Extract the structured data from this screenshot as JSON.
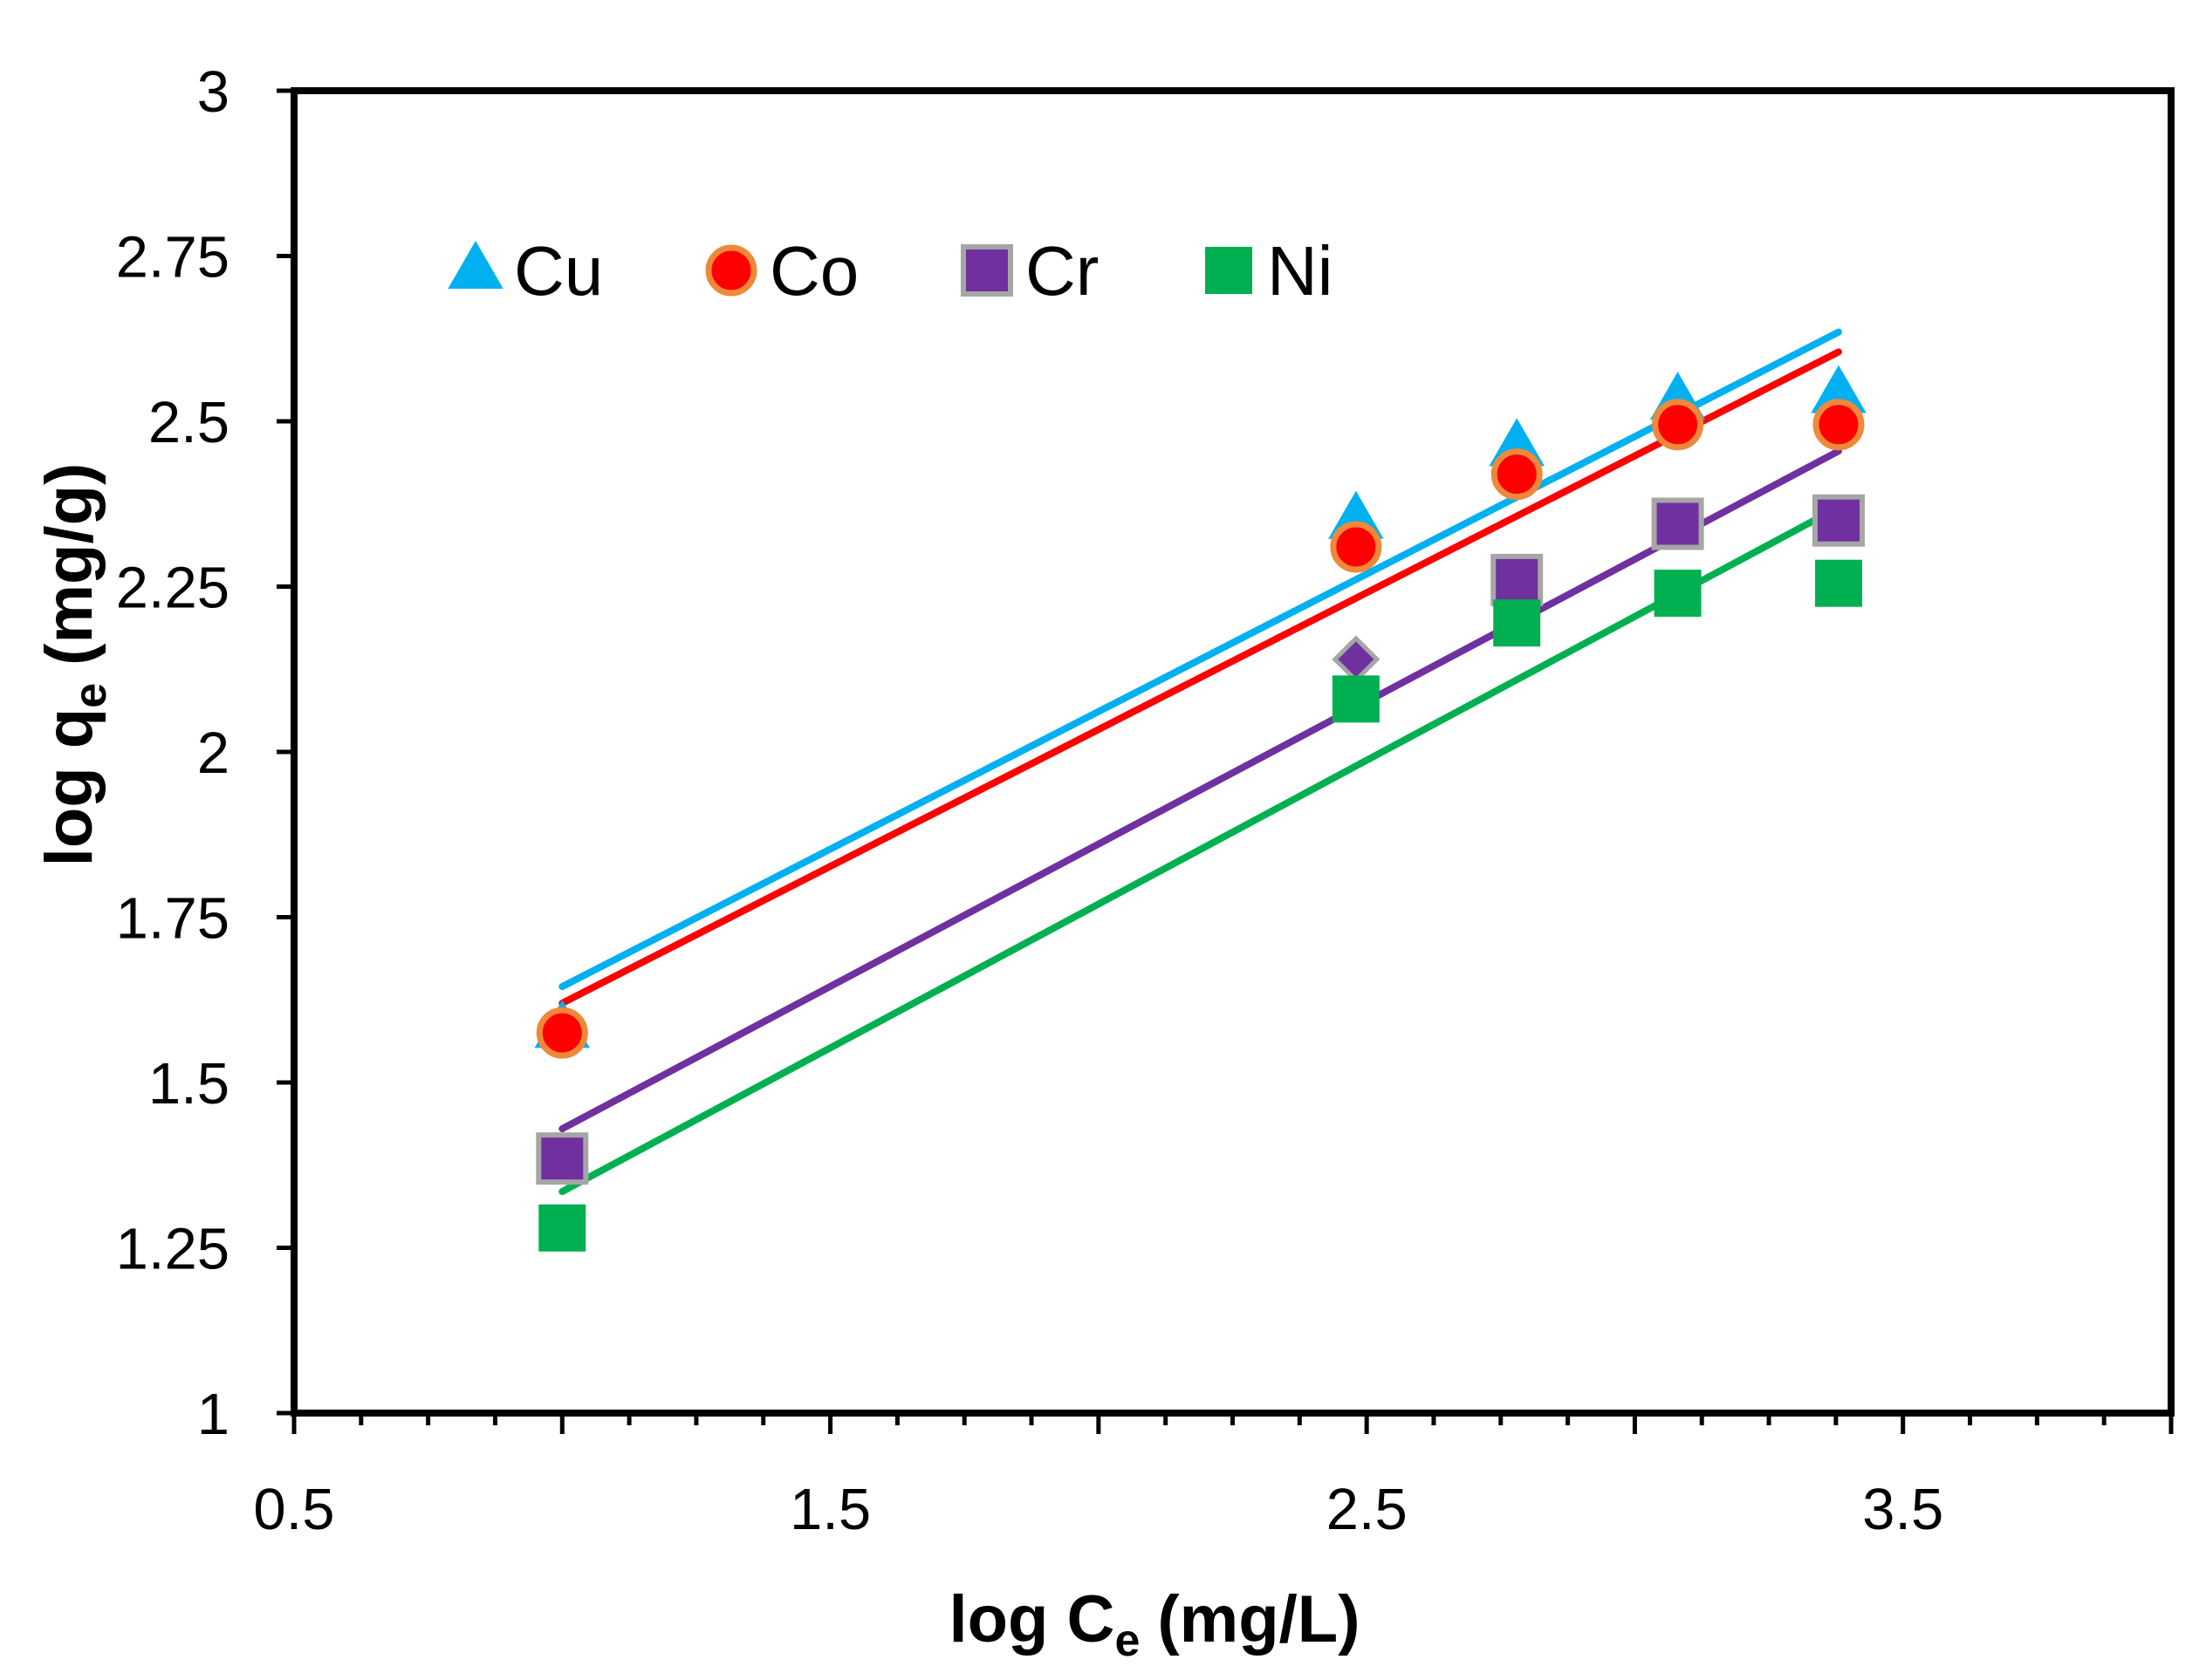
{
  "chart_data": {
    "type": "scatter",
    "xlabel_main": "log C",
    "xlabel_sub": "e",
    "xlabel_unit": "(mg/L)",
    "ylabel_main": "log q",
    "ylabel_sub": "e",
    "ylabel_unit": "(mg/g)",
    "xlim": [
      0.5,
      4.0
    ],
    "ylim": [
      1.0,
      3.0
    ],
    "x_ticks": [
      0.5,
      1.5,
      2.5,
      3.5
    ],
    "x_tick_labels": [
      "0.5",
      "1.5",
      "2.5",
      "3.5"
    ],
    "y_ticks": [
      1,
      1.25,
      1.5,
      1.75,
      2,
      2.25,
      2.5,
      2.75,
      3
    ],
    "y_tick_labels": [
      "1",
      "1.25",
      "1.5",
      "1.75",
      "2",
      "2.25",
      "2.5",
      "2.75",
      "3"
    ],
    "grid": false,
    "legend_position": "top-left",
    "series": [
      {
        "name": "Cu",
        "marker": "triangle",
        "color": "#00B0F0",
        "stroke": "#00B0F0",
        "points": [
          [
            1.0,
            1.58
          ],
          [
            2.48,
            2.35
          ],
          [
            2.78,
            2.46
          ],
          [
            3.08,
            2.53
          ],
          [
            3.38,
            2.54
          ]
        ],
        "fit": [
          [
            1.0,
            1.645
          ],
          [
            3.38,
            2.635
          ]
        ]
      },
      {
        "name": "Co",
        "marker": "circle",
        "color": "#FF0000",
        "stroke": "#F0883A",
        "points": [
          [
            1.0,
            1.575
          ],
          [
            2.48,
            2.31
          ],
          [
            2.78,
            2.42
          ],
          [
            3.08,
            2.495
          ],
          [
            3.38,
            2.495
          ]
        ],
        "fit": [
          [
            1.0,
            1.62
          ],
          [
            3.38,
            2.605
          ]
        ]
      },
      {
        "name": "Cr",
        "marker": "square",
        "color": "#7030A0",
        "stroke": "#A6A6A6",
        "points": [
          [
            1.0,
            1.385
          ],
          [
            2.48,
            2.14
          ],
          [
            2.78,
            2.26
          ],
          [
            3.08,
            2.345
          ],
          [
            3.38,
            2.35
          ]
        ],
        "fit": [
          [
            1.0,
            1.43
          ],
          [
            3.38,
            2.455
          ]
        ]
      },
      {
        "name": "Ni",
        "marker": "square",
        "color": "#00B050",
        "stroke": "#00B050",
        "points": [
          [
            1.0,
            1.28
          ],
          [
            2.48,
            2.08
          ],
          [
            2.78,
            2.195
          ],
          [
            3.08,
            2.24
          ],
          [
            3.38,
            2.255
          ]
        ],
        "fit": [
          [
            1.0,
            1.335
          ],
          [
            3.38,
            2.37
          ]
        ]
      }
    ]
  }
}
